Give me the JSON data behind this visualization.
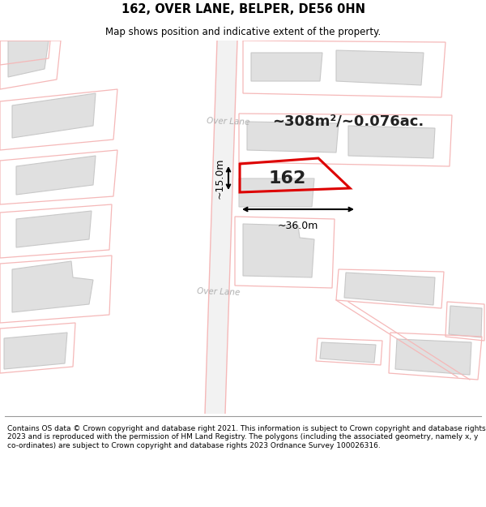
{
  "title": "162, OVER LANE, BELPER, DE56 0HN",
  "subtitle": "Map shows position and indicative extent of the property.",
  "footer_lines": "Contains OS data © Crown copyright and database right 2021. This information is subject to Crown copyright and database rights 2023 and is reproduced with the permission of HM Land Registry. The polygons (including the associated geometry, namely x, y co-ordinates) are subject to Crown copyright and database rights 2023 Ordnance Survey 100026316.",
  "area_label": "~308m²/~0.076ac.",
  "property_label": "162",
  "dim_width": "~36.0m",
  "dim_height": "~15.0m",
  "road_label": "Over Lane",
  "bg_color": "#ffffff",
  "map_bg": "#f7f7f7",
  "building_fill": "#e0e0e0",
  "building_edge_color": "#c8c8c8",
  "property_color": "#dd0000",
  "plot_color": "#f5b8b8",
  "dim_color": "#111111",
  "text_color": "#222222",
  "road_label_color": "#b0b0b0"
}
